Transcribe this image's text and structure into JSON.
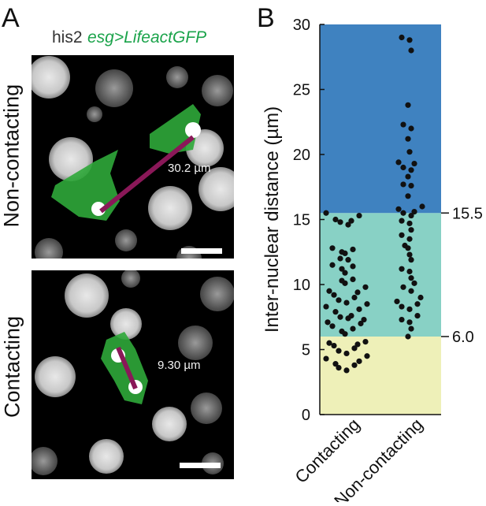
{
  "panel_a": {
    "letter": "A",
    "stain_label": "his2",
    "genotype_label": "esg>LifeactGFP",
    "genotype_color": "#1aa34a",
    "top_row_label": "Non-contacting",
    "top_measurement": "30.2 µm",
    "bottom_row_label": "Contacting",
    "bottom_measurement": "9.30 µm",
    "line_color": "#8a1858"
  },
  "panel_b": {
    "letter": "B"
  },
  "chart_data": {
    "type": "scatter",
    "ylabel": "Inter-nuclear distance (µm)",
    "ylim": [
      0,
      30
    ],
    "yticks": [
      0,
      5,
      10,
      15,
      20,
      25,
      30
    ],
    "categories": [
      "Contacting",
      "Non-contacting"
    ],
    "bands": [
      {
        "from": 0,
        "to": 6.0,
        "color": "#eef0b8"
      },
      {
        "from": 6.0,
        "to": 15.5,
        "color": "#88d1c5"
      },
      {
        "from": 15.5,
        "to": 30,
        "color": "#3f82c0"
      }
    ],
    "thresholds": [
      {
        "value": 15.5,
        "label": "15.5"
      },
      {
        "value": 6.0,
        "label": "6.0"
      }
    ],
    "series": [
      {
        "category": "Contacting",
        "values": [
          15.5,
          15.3,
          15.0,
          14.9,
          14.8,
          14.6,
          12.8,
          12.7,
          12.5,
          12.4,
          12.0,
          11.9,
          11.5,
          11.4,
          11.2,
          10.9,
          10.4,
          10.3,
          10.1,
          9.8,
          9.5,
          9.4,
          9.2,
          9.0,
          8.8,
          8.6,
          8.5,
          8.3,
          8.1,
          7.9,
          7.6,
          7.5,
          7.4,
          7.3,
          7.1,
          7.0,
          6.8,
          6.6,
          6.4,
          6.2,
          5.6,
          5.5,
          5.4,
          5.3,
          5.1,
          4.9,
          4.7,
          4.5,
          4.3,
          4.1,
          3.9,
          3.6,
          3.4,
          3.8
        ]
      },
      {
        "category": "Non-contacting",
        "values": [
          29.0,
          28.8,
          28.0,
          23.8,
          22.3,
          22.0,
          21.2,
          20.2,
          19.4,
          19.3,
          19.0,
          18.8,
          18.3,
          17.7,
          17.6,
          16.8,
          16.0,
          15.8,
          15.6,
          15.5,
          15.3,
          14.9,
          14.7,
          14.2,
          13.8,
          13.5,
          13.0,
          12.8,
          12.3,
          11.9,
          11.2,
          11.0,
          10.5,
          10.1,
          9.8,
          9.5,
          9.0,
          8.7,
          8.5,
          8.3,
          8.1,
          7.6,
          7.3,
          7.1,
          6.6,
          6.0
        ]
      }
    ]
  }
}
